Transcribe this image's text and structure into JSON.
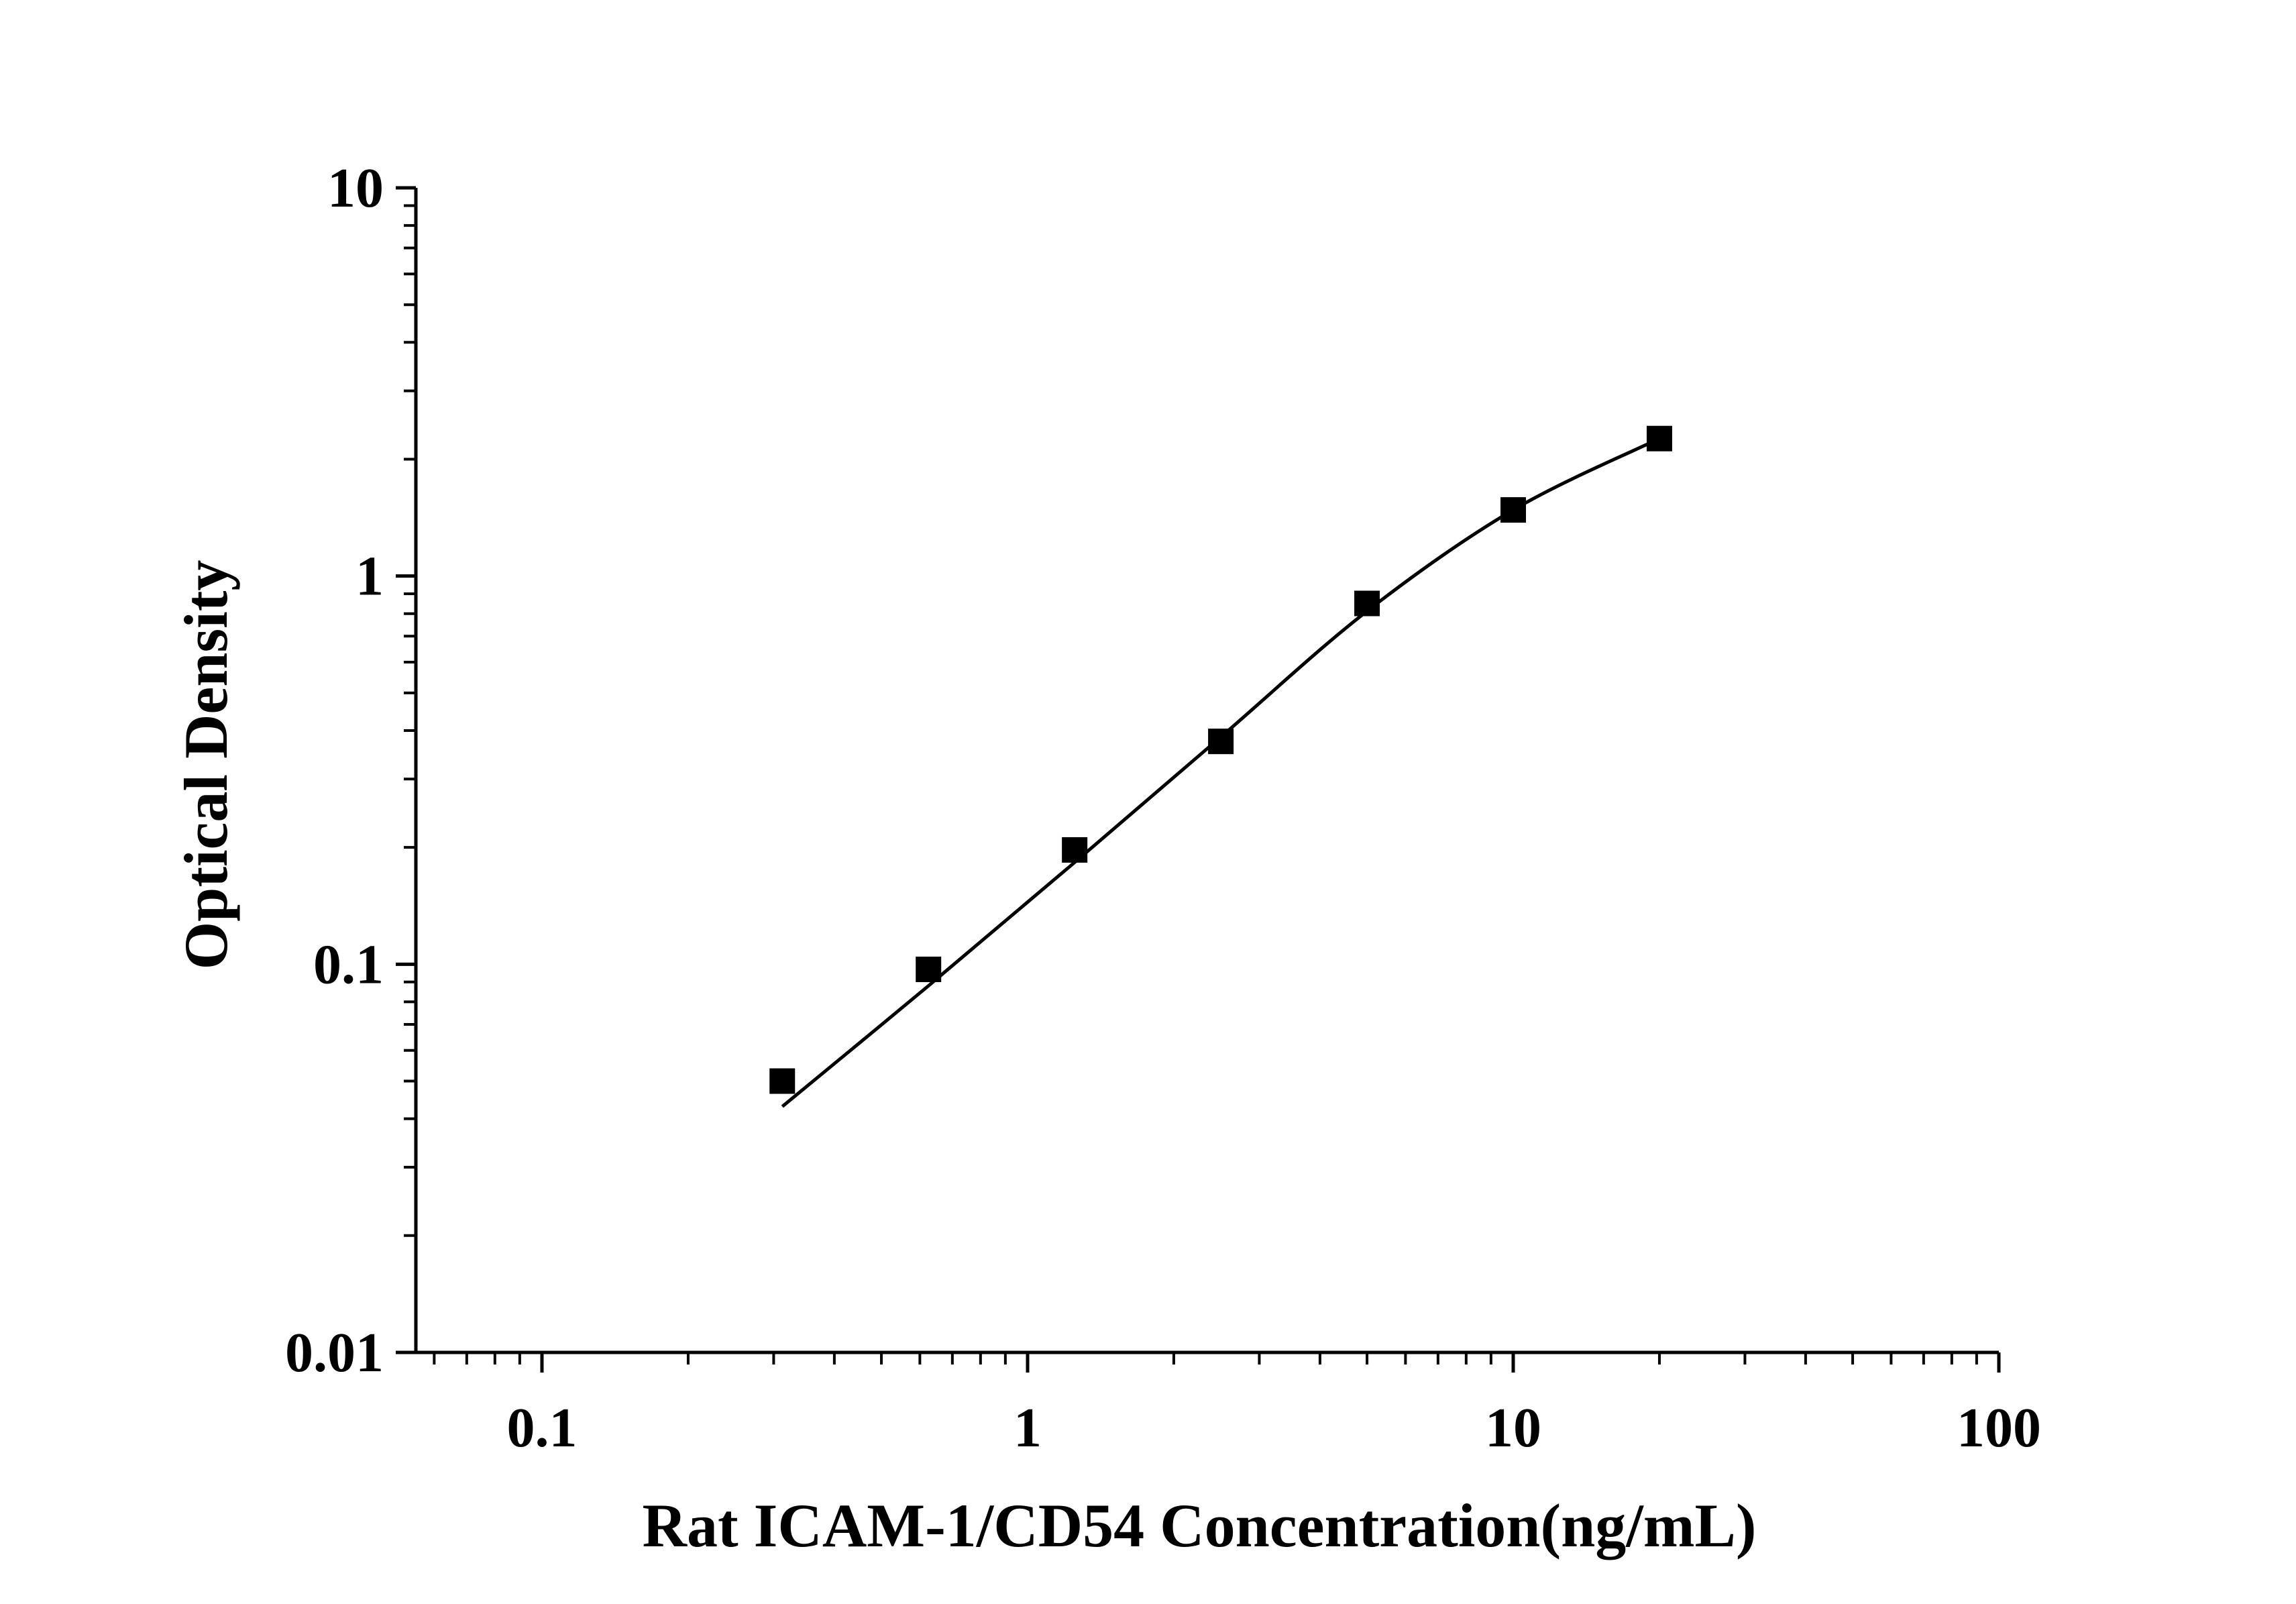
{
  "chart_data": {
    "type": "scatter",
    "xscale": "log",
    "yscale": "log",
    "xlim": [
      0.055,
      100
    ],
    "ylim": [
      0.01,
      10
    ],
    "xlabel": "Rat ICAM-1/CD54 Concentration(ng/mL)",
    "ylabel": "Optical Density",
    "xticks": [
      {
        "value": 0.1,
        "label": "0.1"
      },
      {
        "value": 1,
        "label": "1"
      },
      {
        "value": 10,
        "label": "10"
      },
      {
        "value": 100,
        "label": "100"
      }
    ],
    "yticks": [
      {
        "value": 0.01,
        "label": "0.01"
      },
      {
        "value": 0.1,
        "label": "0.1"
      },
      {
        "value": 1,
        "label": "1"
      },
      {
        "value": 10,
        "label": "10"
      }
    ],
    "grid": false,
    "series": [
      {
        "marker": "square",
        "x": [
          0.3125,
          0.625,
          1.25,
          2.5,
          5,
          10,
          20
        ],
        "y": [
          0.05,
          0.097,
          0.197,
          0.375,
          0.85,
          1.48,
          2.26
        ]
      }
    ],
    "fit_curve": {
      "x": [
        0.3125,
        0.625,
        1.25,
        2.5,
        5,
        10,
        20
      ],
      "y": [
        0.043,
        0.088,
        0.183,
        0.385,
        0.812,
        1.48,
        2.26
      ]
    },
    "colors": {
      "axis": "#000000",
      "marker": "#000000",
      "line": "#000000",
      "background": "#ffffff"
    }
  }
}
